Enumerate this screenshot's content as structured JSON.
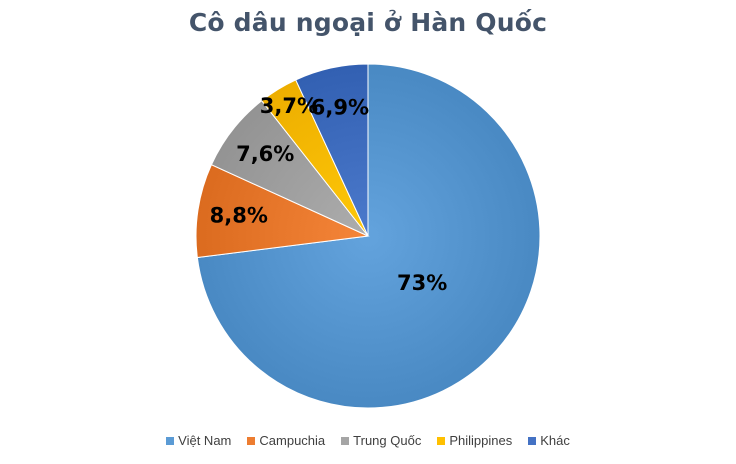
{
  "chart_data": {
    "type": "pie",
    "title": "Cô dâu ngoại ở Hàn Quốc",
    "slices": [
      {
        "name": "Việt Nam",
        "value": 73,
        "label": "73%",
        "color": "#5b9bd5"
      },
      {
        "name": "Campuchia",
        "value": 8.8,
        "label": "8,8%",
        "color": "#ed7d31"
      },
      {
        "name": "Trung Quốc",
        "value": 7.6,
        "label": "7,6%",
        "color": "#a5a5a5"
      },
      {
        "name": "Philippines",
        "value": 3.7,
        "label": "3,7%",
        "color": "#ffc000"
      },
      {
        "name": "Khác",
        "value": 6.9,
        "label": "6,9%",
        "color": "#4472c4"
      }
    ],
    "legend_position": "bottom"
  }
}
